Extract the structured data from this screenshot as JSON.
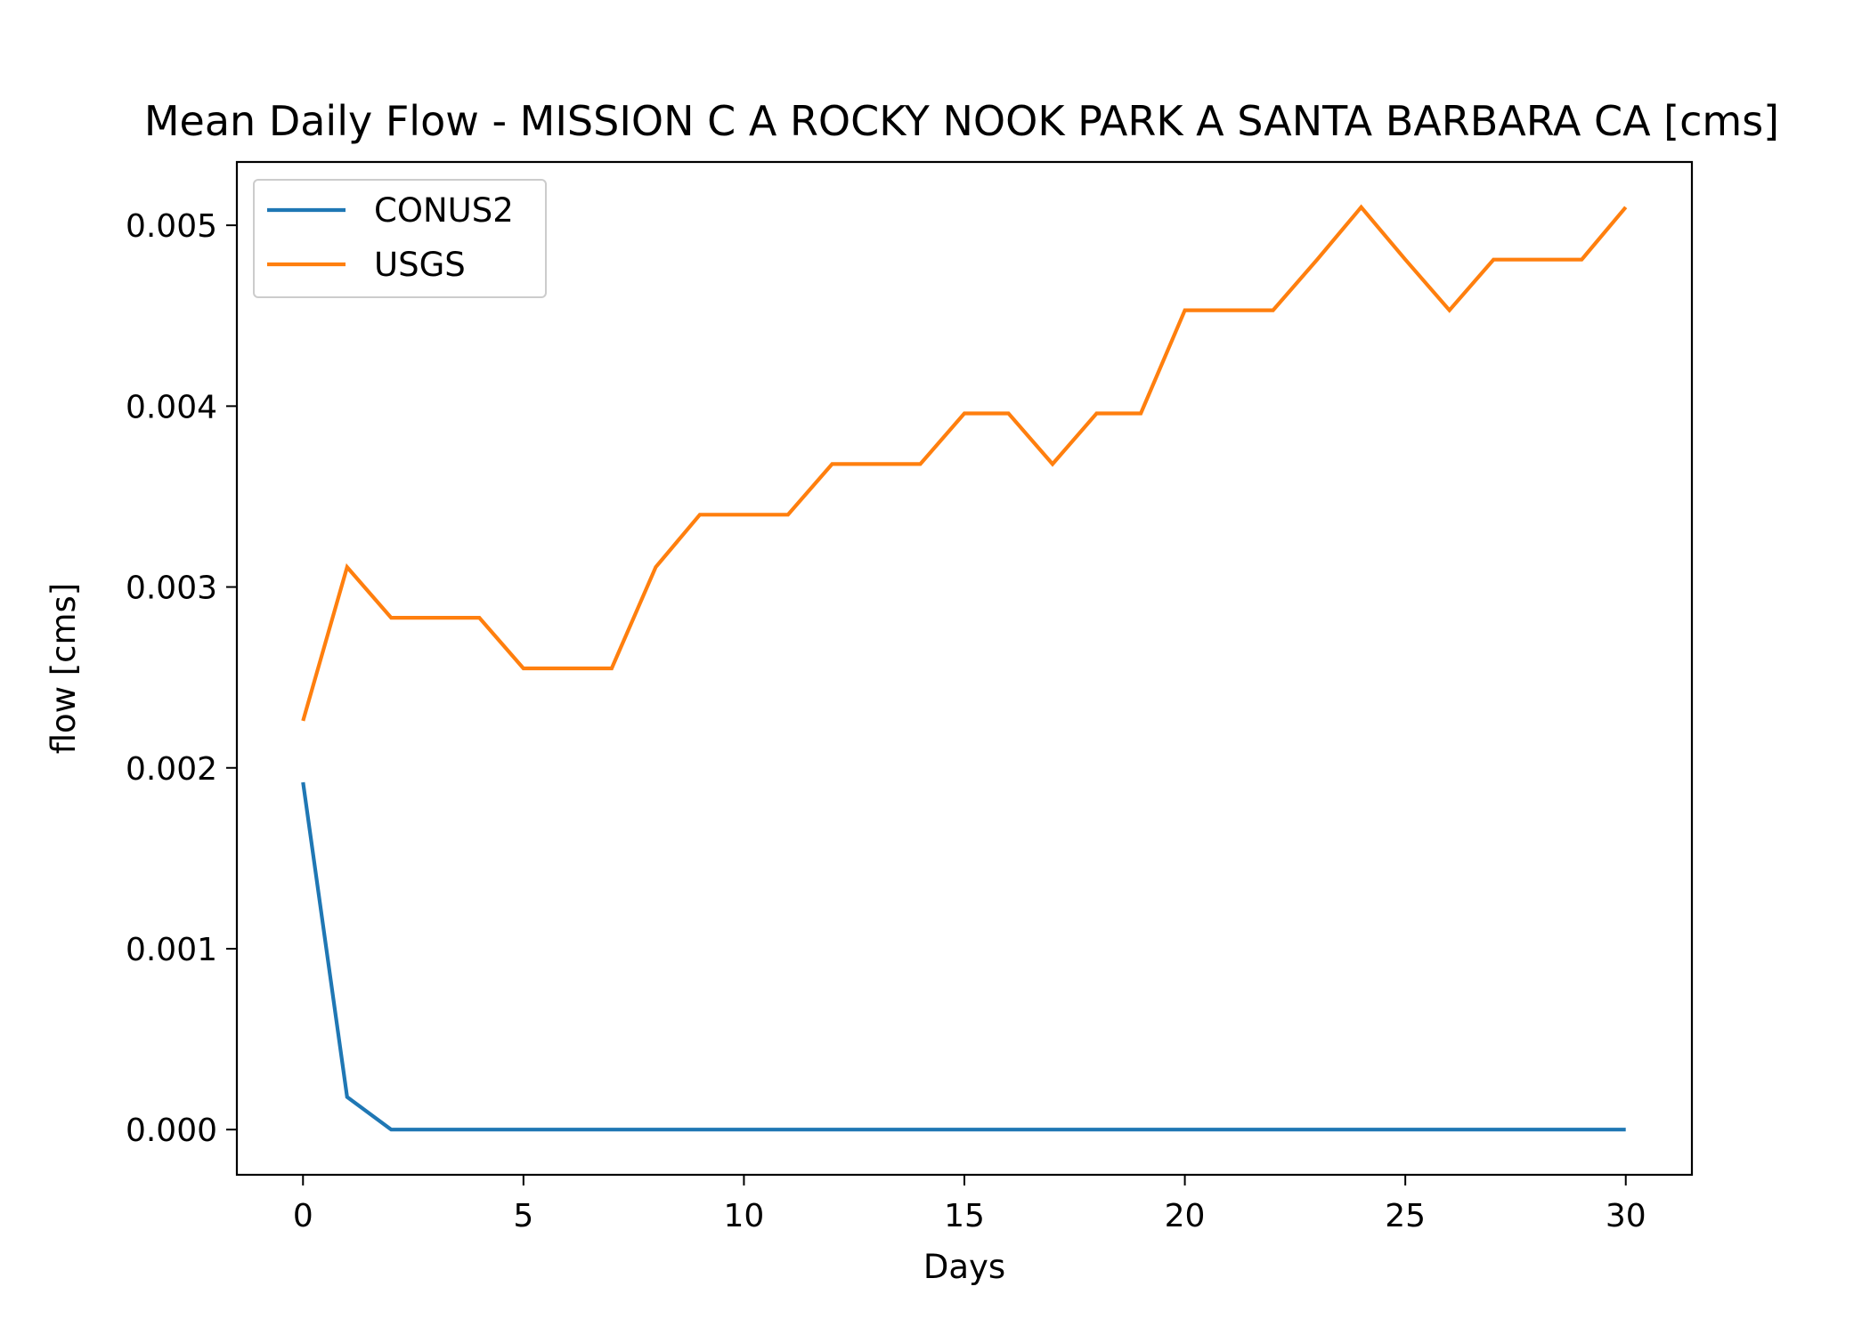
{
  "chart_data": {
    "type": "line",
    "title": "Mean Daily Flow - MISSION C A ROCKY NOOK PARK A SANTA BARBARA CA [cms]",
    "xlabel": "Days",
    "ylabel": "flow [cms]",
    "xlim": [
      -1.5,
      31.5
    ],
    "ylim": [
      -0.00025,
      0.00535
    ],
    "xticks": [
      0,
      5,
      10,
      15,
      20,
      25,
      30
    ],
    "xtick_labels": [
      "0",
      "5",
      "10",
      "15",
      "20",
      "25",
      "30"
    ],
    "yticks": [
      0.0,
      0.001,
      0.002,
      0.003,
      0.004,
      0.005
    ],
    "ytick_labels": [
      "0.000",
      "0.001",
      "0.002",
      "0.003",
      "0.004",
      "0.005"
    ],
    "grid": false,
    "legend_position": "top-left",
    "x": [
      0,
      1,
      2,
      3,
      4,
      5,
      6,
      7,
      8,
      9,
      10,
      11,
      12,
      13,
      14,
      15,
      16,
      17,
      18,
      19,
      20,
      21,
      22,
      23,
      24,
      25,
      26,
      27,
      28,
      29,
      30
    ],
    "series": [
      {
        "name": "CONUS2",
        "color": "#1f77b4",
        "values": [
          0.00192,
          0.00018,
          0.0,
          0.0,
          0.0,
          0.0,
          0.0,
          0.0,
          0.0,
          0.0,
          0.0,
          0.0,
          0.0,
          0.0,
          0.0,
          0.0,
          0.0,
          0.0,
          0.0,
          0.0,
          0.0,
          0.0,
          0.0,
          0.0,
          0.0,
          0.0,
          0.0,
          0.0,
          0.0,
          0.0,
          0.0
        ]
      },
      {
        "name": "USGS",
        "color": "#ff7f0e",
        "values": [
          0.00226,
          0.00311,
          0.00283,
          0.00283,
          0.00283,
          0.00255,
          0.00255,
          0.00255,
          0.00311,
          0.0034,
          0.0034,
          0.0034,
          0.00368,
          0.00368,
          0.00368,
          0.00396,
          0.00396,
          0.00368,
          0.00396,
          0.00396,
          0.00453,
          0.00453,
          0.00453,
          0.00481,
          0.0051,
          0.00481,
          0.00453,
          0.00481,
          0.00481,
          0.00481,
          0.0051
        ]
      }
    ]
  }
}
